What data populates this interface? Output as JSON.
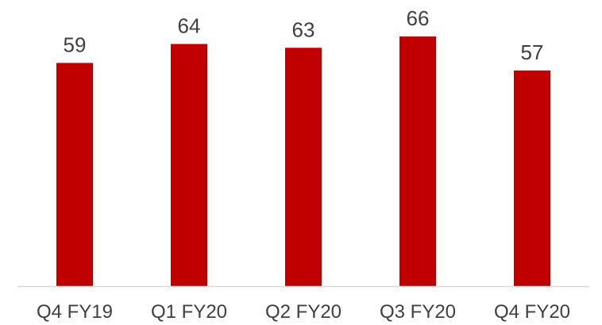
{
  "chart_data": {
    "type": "bar",
    "categories": [
      "Q4 FY19",
      "Q1 FY20",
      "Q2 FY20",
      "Q3 FY20",
      "Q4 FY20"
    ],
    "values": [
      59,
      64,
      63,
      66,
      57
    ],
    "title": "",
    "xlabel": "",
    "ylabel": "",
    "ylim": [
      0,
      66
    ],
    "grid": false,
    "legend": "none",
    "data_labels": true,
    "bar_color": "#c00000",
    "axis_color": "#d9d9d9",
    "text_color": "#404040"
  }
}
